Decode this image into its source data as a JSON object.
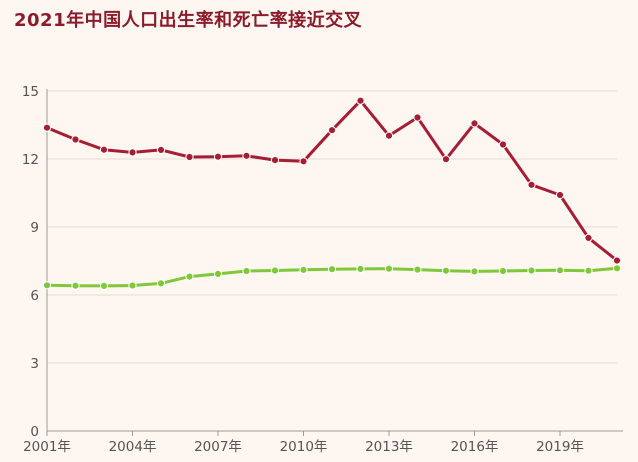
{
  "chart_data": {
    "type": "line",
    "title": "2021年中国人口出生率和死亡率接近交叉",
    "xlabel": "",
    "ylabel": "",
    "x": [
      2001,
      2002,
      2003,
      2004,
      2005,
      2006,
      2007,
      2008,
      2009,
      2010,
      2011,
      2012,
      2013,
      2014,
      2015,
      2016,
      2017,
      2018,
      2019,
      2020,
      2021
    ],
    "x_ticks": [
      2001,
      2004,
      2007,
      2010,
      2013,
      2016,
      2019
    ],
    "x_tick_labels": [
      "2001年",
      "2004年",
      "2007年",
      "2010年",
      "2013年",
      "2016年",
      "2019年"
    ],
    "xlim": [
      2001,
      2021
    ],
    "ylim": [
      0,
      15
    ],
    "y_ticks": [
      0,
      3,
      6,
      9,
      12,
      15
    ],
    "y_tick_labels": [
      "0",
      "3",
      "6",
      "9",
      "12",
      "15"
    ],
    "grid": "horizontal",
    "legend": "none",
    "series": [
      {
        "color": "#a51e35",
        "values": [
          13.38,
          12.86,
          12.41,
          12.29,
          12.4,
          12.09,
          12.1,
          12.14,
          11.95,
          11.9,
          13.27,
          14.57,
          13.03,
          13.83,
          11.99,
          13.57,
          12.64,
          10.86,
          10.41,
          8.52,
          7.52
        ]
      },
      {
        "color": "#7fc83a",
        "values": [
          6.43,
          6.41,
          6.4,
          6.42,
          6.51,
          6.81,
          6.93,
          7.06,
          7.08,
          7.11,
          7.14,
          7.15,
          7.16,
          7.12,
          7.07,
          7.04,
          7.06,
          7.08,
          7.09,
          7.07,
          7.18
        ]
      }
    ]
  }
}
